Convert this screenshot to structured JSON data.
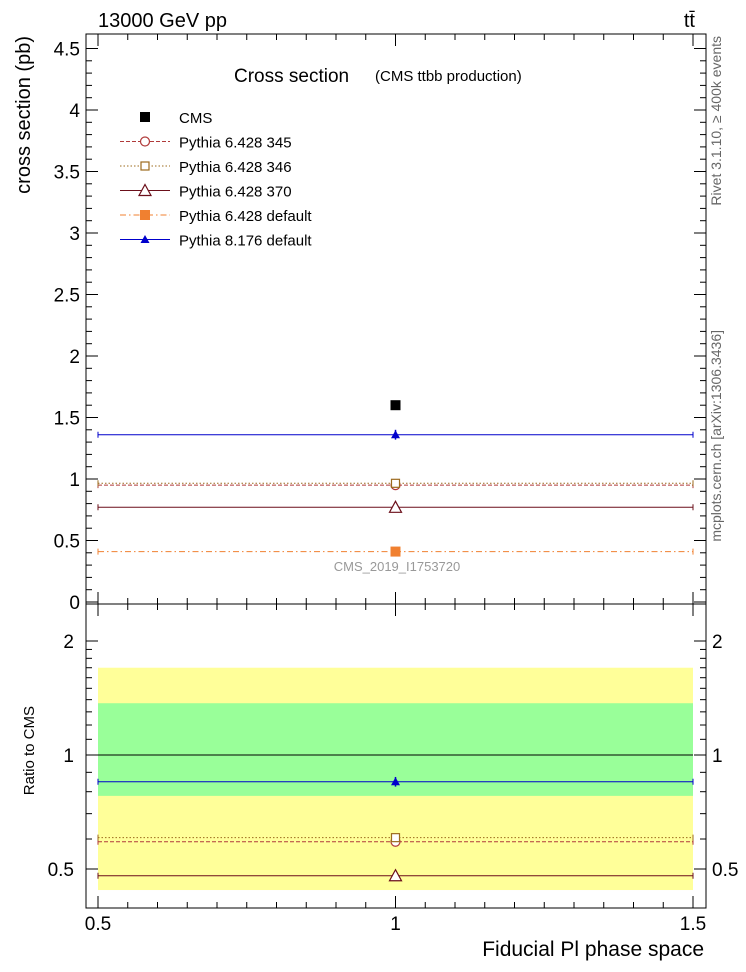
{
  "header": {
    "left": "13000 GeV pp",
    "right": "tt̄"
  },
  "side": {
    "rivet": "Rivet 3.1.10, ≥ 400k events",
    "mcplots": "mcplots.cern.ch [arXiv:1306.3436]"
  },
  "chart_data": {
    "type": "scatter",
    "title": "Cross section",
    "subtitle": "(CMS ttbb production)",
    "analysis_tag": "CMS_2019_I1753720",
    "xlabel": "Fiducial Pl phase space",
    "ylabel": "cross section (pb)",
    "xlim": [
      0.5,
      1.5
    ],
    "ylim": [
      0,
      4.6
    ],
    "x_ticks": [
      "0.5",
      "1",
      "1.5"
    ],
    "y_ticks": [
      "0",
      "0.5",
      "1",
      "1.5",
      "2",
      "2.5",
      "3",
      "3.5",
      "4",
      "4.5"
    ],
    "legend_position": "top-left",
    "series": [
      {
        "name": "CMS",
        "x": 1.0,
        "y": 1.6,
        "color": "#000000",
        "marker": "square-filled",
        "line": "none"
      },
      {
        "name": "Pythia 6.428 345",
        "x": 1.0,
        "y": 0.95,
        "color": "#b03a3a",
        "marker": "circle-open",
        "line": "dashed"
      },
      {
        "name": "Pythia 6.428 346",
        "x": 1.0,
        "y": 0.965,
        "color": "#9c6b1e",
        "marker": "square-open",
        "line": "dotted"
      },
      {
        "name": "Pythia 6.428 370",
        "x": 1.0,
        "y": 0.77,
        "color": "#6b0f1a",
        "marker": "triangle-open",
        "line": "solid"
      },
      {
        "name": "Pythia 6.428 default",
        "x": 1.0,
        "y": 0.41,
        "color": "#f08030",
        "marker": "square-filled",
        "line": "dashdot"
      },
      {
        "name": "Pythia 8.176 default",
        "x": 1.0,
        "y": 1.36,
        "yerr": 0.04,
        "color": "#0000cc",
        "marker": "triangle-filled",
        "line": "solid"
      }
    ],
    "ratio": {
      "ylabel": "Ratio to CMS",
      "scale": "log",
      "ylim": [
        0.4,
        2.4
      ],
      "y_ticks": [
        "0.5",
        "1",
        "2"
      ],
      "band_inner": [
        0.78,
        1.37
      ],
      "band_outer": [
        0.44,
        1.7
      ],
      "band_inner_color": "#99ff99",
      "band_outer_color": "#ffff99",
      "values": [
        {
          "name": "Pythia 6.428 345",
          "y": 0.59
        },
        {
          "name": "Pythia 6.428 346",
          "y": 0.605
        },
        {
          "name": "Pythia 6.428 370",
          "y": 0.48
        },
        {
          "name": "Pythia 8.176 default",
          "y": 0.85,
          "yerr": 0.025
        }
      ]
    }
  }
}
